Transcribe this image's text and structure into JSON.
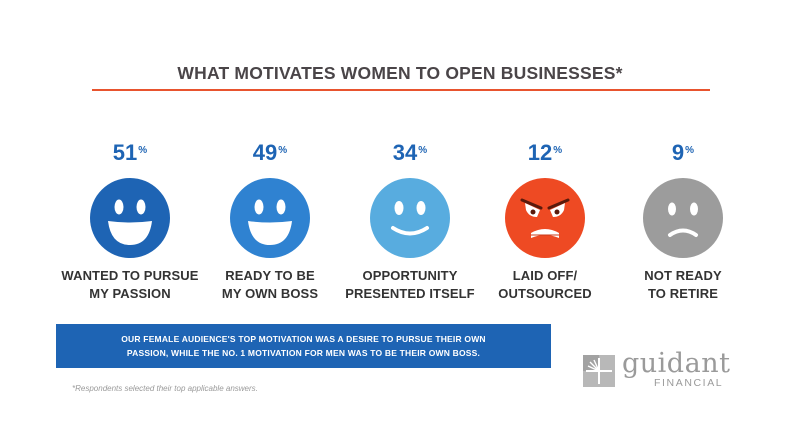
{
  "title": "WHAT MOTIVATES WOMEN TO OPEN BUSINESSES*",
  "chart_data": {
    "type": "bar",
    "title": "WHAT MOTIVATES WOMEN TO OPEN BUSINESSES*",
    "categories": [
      "WANTED TO PURSUE MY PASSION",
      "READY TO BE MY OWN BOSS",
      "OPPORTUNITY PRESENTED ITSELF",
      "LAID OFF/ OUTSOURCED",
      "NOT READY TO RETIRE"
    ],
    "values": [
      51,
      49,
      34,
      12,
      9
    ],
    "unit": "%"
  },
  "items": [
    {
      "value": "51",
      "unit": "%",
      "label": "WANTED TO PURSUE\nMY PASSION",
      "mood": "happy",
      "color": "#1e64b4"
    },
    {
      "value": "49",
      "unit": "%",
      "label": "READY TO BE\nMY OWN BOSS",
      "mood": "happy",
      "color": "#2f82d1"
    },
    {
      "value": "34",
      "unit": "%",
      "label": "OPPORTUNITY\nPRESENTED ITSELF",
      "mood": "smile",
      "color": "#58acdf"
    },
    {
      "value": "12",
      "unit": "%",
      "label": "LAID OFF/\nOUTSOURCED",
      "mood": "angry",
      "color": "#ee4a23"
    },
    {
      "value": "9",
      "unit": "%",
      "label": "NOT READY\nTO RETIRE",
      "mood": "sad",
      "color": "#9c9c9c"
    }
  ],
  "banner": "OUR FEMALE AUDIENCE'S TOP MOTIVATION WAS A DESIRE TO PURSUE THEIR OWN PASSION, WHILE THE NO. 1 MOTIVATION FOR MEN WAS TO BE THEIR OWN BOSS.",
  "footnote": "*Respondents selected their top applicable answers.",
  "logo": {
    "name": "guidant",
    "sub": "FINANCIAL"
  },
  "colors": {
    "accent_rule": "#e8542e",
    "brand_blue": "#1e64b4",
    "title_text": "#4a4548"
  }
}
